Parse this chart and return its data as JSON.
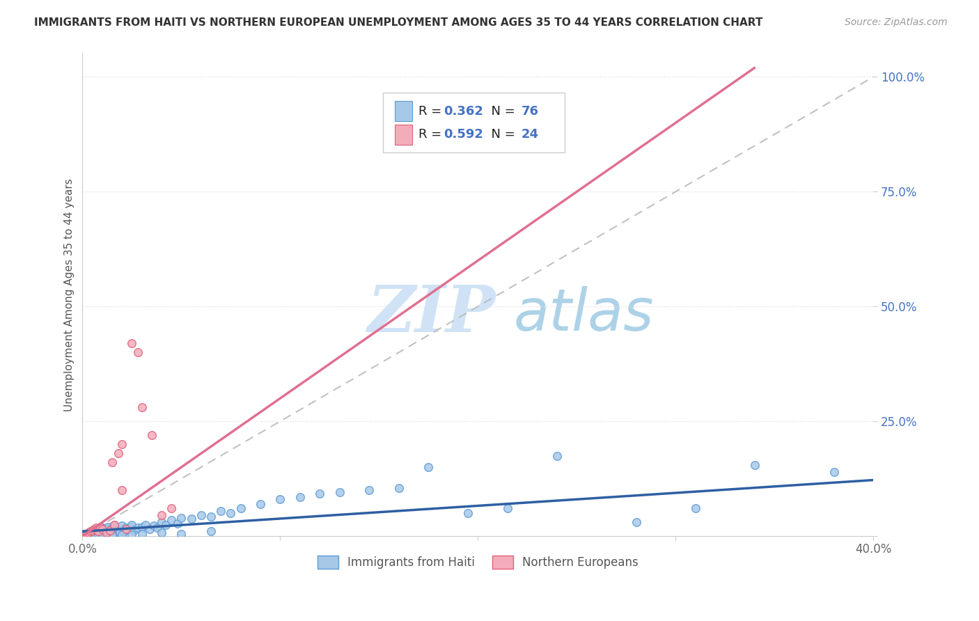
{
  "title": "IMMIGRANTS FROM HAITI VS NORTHERN EUROPEAN UNEMPLOYMENT AMONG AGES 35 TO 44 YEARS CORRELATION CHART",
  "source": "Source: ZipAtlas.com",
  "ylabel": "Unemployment Among Ages 35 to 44 years",
  "xlim": [
    0.0,
    0.4
  ],
  "ylim": [
    0.0,
    1.05
  ],
  "ytick_vals": [
    0.0,
    0.25,
    0.5,
    0.75,
    1.0
  ],
  "ytick_labels": [
    "",
    "25.0%",
    "50.0%",
    "75.0%",
    "100.0%"
  ],
  "xtick_vals": [
    0.0,
    0.1,
    0.2,
    0.3,
    0.4
  ],
  "xtick_labels": [
    "0.0%",
    "",
    "",
    "",
    "40.0%"
  ],
  "haiti_color": "#A8C8E8",
  "haiti_edge": "#5B9BD5",
  "northern_color": "#F4ACBA",
  "northern_edge": "#E0607A",
  "haiti_R": 0.362,
  "haiti_N": 76,
  "northern_R": 0.592,
  "northern_N": 24,
  "haiti_line_color": "#2E5FA3",
  "northern_line_color": "#E07090",
  "diagonal_color": "#BBBBBB",
  "watermark_zip_color": "#C8DEF5",
  "watermark_atlas_color": "#5B9BD5",
  "background_color": "#FFFFFF",
  "grid_color": "#E0E0E0",
  "tick_label_color": "#4472C4",
  "legend_text_color": "#1F1F1F",
  "legend_value_color": "#4472C4",
  "haiti_scatter_x": [
    0.001,
    0.002,
    0.003,
    0.003,
    0.004,
    0.005,
    0.005,
    0.006,
    0.006,
    0.007,
    0.007,
    0.008,
    0.008,
    0.009,
    0.01,
    0.01,
    0.011,
    0.012,
    0.012,
    0.013,
    0.014,
    0.015,
    0.015,
    0.016,
    0.017,
    0.018,
    0.019,
    0.02,
    0.021,
    0.022,
    0.023,
    0.024,
    0.025,
    0.026,
    0.028,
    0.03,
    0.032,
    0.034,
    0.036,
    0.038,
    0.04,
    0.042,
    0.045,
    0.048,
    0.05,
    0.055,
    0.06,
    0.065,
    0.07,
    0.075,
    0.08,
    0.09,
    0.1,
    0.11,
    0.12,
    0.13,
    0.145,
    0.16,
    0.175,
    0.195,
    0.215,
    0.24,
    0.28,
    0.31,
    0.34,
    0.38,
    0.005,
    0.008,
    0.01,
    0.015,
    0.02,
    0.025,
    0.03,
    0.04,
    0.05,
    0.065
  ],
  "haiti_scatter_y": [
    0.005,
    0.003,
    0.008,
    0.004,
    0.006,
    0.01,
    0.003,
    0.008,
    0.012,
    0.005,
    0.015,
    0.007,
    0.01,
    0.004,
    0.012,
    0.018,
    0.008,
    0.015,
    0.006,
    0.02,
    0.01,
    0.018,
    0.005,
    0.025,
    0.012,
    0.015,
    0.008,
    0.022,
    0.01,
    0.018,
    0.015,
    0.02,
    0.025,
    0.012,
    0.018,
    0.02,
    0.025,
    0.015,
    0.022,
    0.018,
    0.03,
    0.025,
    0.035,
    0.028,
    0.04,
    0.038,
    0.045,
    0.042,
    0.055,
    0.05,
    0.06,
    0.07,
    0.08,
    0.085,
    0.092,
    0.095,
    0.1,
    0.105,
    0.15,
    0.05,
    0.06,
    0.175,
    0.03,
    0.06,
    0.155,
    0.14,
    0.002,
    0.002,
    0.001,
    0.002,
    0.003,
    0.003,
    0.005,
    0.008,
    0.005,
    0.01
  ],
  "northern_scatter_x": [
    0.001,
    0.002,
    0.003,
    0.004,
    0.005,
    0.006,
    0.007,
    0.008,
    0.009,
    0.01,
    0.012,
    0.014,
    0.016,
    0.018,
    0.02,
    0.022,
    0.025,
    0.028,
    0.03,
    0.035,
    0.04,
    0.045,
    0.015,
    0.02
  ],
  "northern_scatter_y": [
    0.003,
    0.005,
    0.008,
    0.01,
    0.012,
    0.015,
    0.018,
    0.01,
    0.02,
    0.015,
    0.008,
    0.012,
    0.025,
    0.18,
    0.2,
    0.015,
    0.42,
    0.4,
    0.28,
    0.22,
    0.045,
    0.06,
    0.16,
    0.1
  ],
  "northern_line_slope": 3.0,
  "northern_line_intercept": 0.0,
  "haiti_line_slope": 0.28,
  "haiti_line_intercept": 0.01
}
